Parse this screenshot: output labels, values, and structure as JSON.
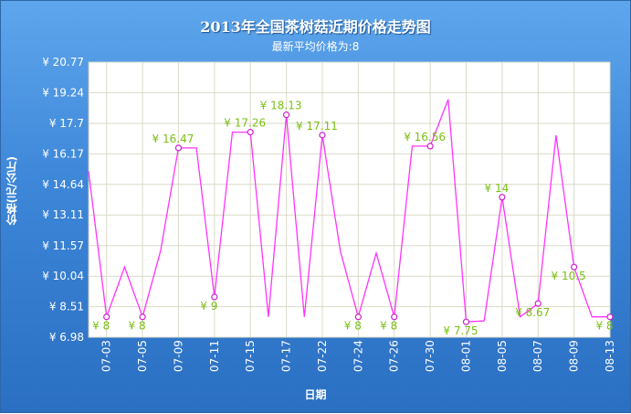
{
  "chart_data": {
    "type": "line",
    "title": "2013年全国茶树菇近期价格走势图",
    "subtitle": "最新平均价格为:8",
    "xlabel": "日期",
    "ylabel": "价格(元/公斤)",
    "currency_symbol": "¥",
    "ylim": [
      6.98,
      20.77
    ],
    "yticks": [
      "¥ 20.77",
      "¥ 19.24",
      "¥ 17.7",
      "¥ 16.17",
      "¥ 14.64",
      "¥ 13.11",
      "¥ 11.57",
      "¥ 10.04",
      "¥ 8.51",
      "¥ 6.98"
    ],
    "ytick_values": [
      20.77,
      19.24,
      17.7,
      16.17,
      14.64,
      13.11,
      11.57,
      10.04,
      8.51,
      6.98
    ],
    "xtick_labels": [
      "07-03",
      "07-05",
      "07-09",
      "07-11",
      "07-15",
      "07-17",
      "07-22",
      "07-24",
      "07-26",
      "07-30",
      "08-01",
      "08-05",
      "08-07",
      "08-09",
      "08-13"
    ],
    "xtick_index": [
      1,
      3,
      5,
      7,
      9,
      11,
      13,
      15,
      17,
      19,
      21,
      23,
      25,
      27,
      29
    ],
    "values": [
      15.3,
      8,
      10.5,
      8,
      11.3,
      16.47,
      16.47,
      9,
      17.26,
      17.26,
      8,
      18.13,
      8,
      17.11,
      11.3,
      8,
      11.2,
      8,
      16.56,
      16.56,
      18.9,
      7.75,
      7.8,
      14,
      8,
      8.67,
      17.1,
      10.5,
      8,
      8
    ],
    "labeled_points": [
      {
        "index": 1,
        "text": "¥ 8"
      },
      {
        "index": 3,
        "text": "¥ 8"
      },
      {
        "index": 5,
        "text": "¥ 16.47"
      },
      {
        "index": 7,
        "text": "¥ 9"
      },
      {
        "index": 9,
        "text": "¥ 17.26"
      },
      {
        "index": 11,
        "text": "¥ 18.13"
      },
      {
        "index": 13,
        "text": "¥ 17.11"
      },
      {
        "index": 15,
        "text": "¥ 8"
      },
      {
        "index": 17,
        "text": "¥ 8"
      },
      {
        "index": 19,
        "text": "¥ 16.56"
      },
      {
        "index": 21,
        "text": "¥ 7.75"
      },
      {
        "index": 23,
        "text": "¥ 14"
      },
      {
        "index": 25,
        "text": "¥ 8.67"
      },
      {
        "index": 27,
        "text": "¥ 10.5"
      },
      {
        "index": 29,
        "text": "¥ 8"
      }
    ],
    "grid": true,
    "colors": {
      "line": "#ff33ff",
      "label": "#7ac014",
      "grid": "#d9d9c8",
      "plot_bg": "#ffffff",
      "outer_bg": "#3d86d8"
    }
  }
}
